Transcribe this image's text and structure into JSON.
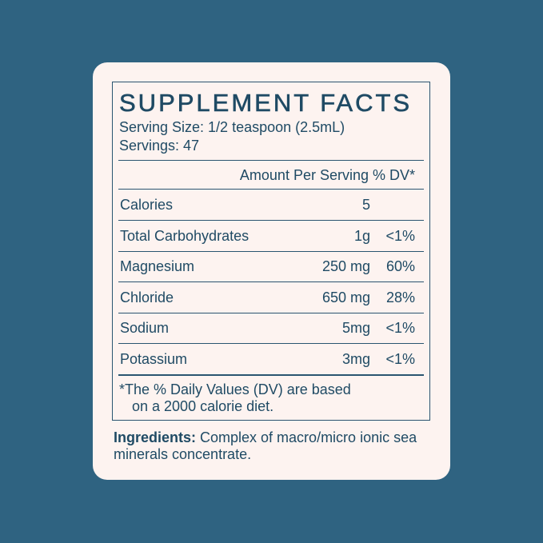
{
  "title": "SUPPLEMENT FACTS",
  "serving_size": "Serving Size: 1/2 teaspoon (2.5mL)",
  "servings": "Servings: 47",
  "header": "Amount Per Serving % DV*",
  "rows": [
    {
      "name": "Calories",
      "amount": "5",
      "dv": ""
    },
    {
      "name": "Total Carbohydrates",
      "amount": "1g",
      "dv": "<1%"
    },
    {
      "name": "Magnesium",
      "amount": "250 mg",
      "dv": "60%"
    },
    {
      "name": "Chloride",
      "amount": "650 mg",
      "dv": "28%"
    },
    {
      "name": "Sodium",
      "amount": "5mg",
      "dv": "<1%"
    },
    {
      "name": "Potassium",
      "amount": "3mg",
      "dv": "<1%"
    }
  ],
  "footnote_line1": "*The % Daily Values (DV) are based",
  "footnote_line2": "on a 2000 calorie diet.",
  "ingredients_label": "Ingredients:",
  "ingredients_text": " Complex of macro/micro ionic sea minerals concentrate.",
  "colors": {
    "background": "#2f6381",
    "card": "#fdf3f0",
    "text": "#1f4a64"
  }
}
